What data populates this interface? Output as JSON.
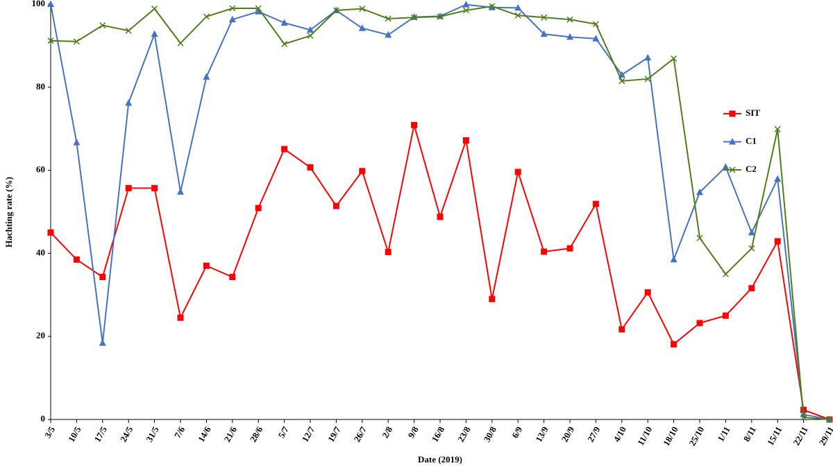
{
  "chart_data": {
    "type": "line",
    "x_label": "Date (2019)",
    "y_label": "Hachting rate (%)",
    "categories": [
      "3/5",
      "10/5",
      "17/5",
      "24/5",
      "31/5",
      "7/6",
      "14/6",
      "21/6",
      "28/6",
      "5/7",
      "12/7",
      "19/7",
      "26/7",
      "2/8",
      "9/8",
      "16/8",
      "23/8",
      "30/8",
      "6/9",
      "13/9",
      "20/9",
      "27/9",
      "4/10",
      "11/10",
      "18/10",
      "25/10",
      "1/11",
      "8/11",
      "15/11",
      "22/11",
      "29/11"
    ],
    "series": [
      {
        "name": "SIT",
        "color": "#ff0000",
        "marker": "square",
        "values": [
          45,
          38.5,
          34.3,
          55.7,
          55.7,
          24.5,
          37,
          34.3,
          50.9,
          65.1,
          60.7,
          51.4,
          59.8,
          40.3,
          70.9,
          48.8,
          67.2,
          29,
          59.6,
          40.4,
          41.2,
          51.9,
          21.7,
          30.6,
          18.1,
          23.2,
          25,
          31.6,
          42.9,
          2.3,
          0
        ]
      },
      {
        "name": "C1",
        "color": "#4472c4",
        "marker": "triangle",
        "values": [
          100,
          66.7,
          18.4,
          76.2,
          92.8,
          54.8,
          82.5,
          96.3,
          98.2,
          95.5,
          93.8,
          98.5,
          94.2,
          92.6,
          96.9,
          97.1,
          99.9,
          99.2,
          99.1,
          92.8,
          92.1,
          91.7,
          83,
          87.1,
          38.5,
          54.7,
          60.8,
          45,
          57.9,
          1.2,
          0
        ]
      },
      {
        "name": "C2",
        "color": "#4e7d1a",
        "marker": "cross",
        "values": [
          91.2,
          91,
          94.9,
          93.6,
          98.9,
          90.6,
          97,
          99,
          99,
          90.4,
          92.4,
          98.5,
          98.9,
          96.5,
          96.8,
          97,
          98.5,
          99.5,
          97.3,
          96.8,
          96.3,
          95.2,
          81.5,
          82,
          86.9,
          43.7,
          35,
          41.2,
          69.9,
          0.5,
          0
        ]
      }
    ],
    "ylim": [
      0,
      100
    ],
    "yticks": [
      0,
      20,
      40,
      60,
      80,
      100
    ],
    "grid": false,
    "legend": "right"
  }
}
